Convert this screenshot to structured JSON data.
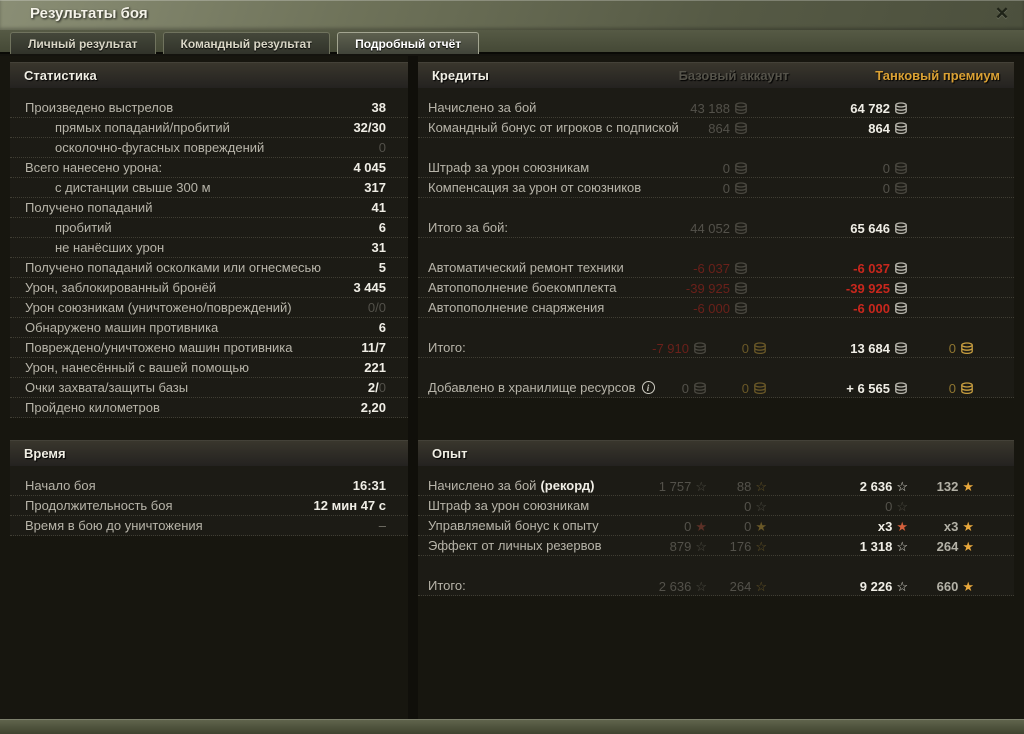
{
  "window": {
    "title": "Результаты боя",
    "close_label": "✕"
  },
  "tabs": [
    {
      "label": "Личный результат",
      "active": false
    },
    {
      "label": "Командный результат",
      "active": false
    },
    {
      "label": "Подробный отчёт",
      "active": true
    }
  ],
  "colors": {
    "premium_gold": "#daa134",
    "negative_red": "#c9271d",
    "value_white": "#f0eee6",
    "dimmed": "#53514a",
    "titlebar_olive": "#6e7259"
  },
  "stats": {
    "title": "Статистика",
    "rows": [
      {
        "label": "Произведено выстрелов",
        "value": "38"
      },
      {
        "label": "прямых попаданий/пробитий",
        "value": "32/30",
        "indent": 1
      },
      {
        "label": "осколочно-фугасных повреждений",
        "value": "0",
        "indent": 1,
        "dim": true
      },
      {
        "label": "Всего нанесено урона:",
        "value": "4 045"
      },
      {
        "label": "с дистанции свыше 300 м",
        "value": "317",
        "indent": 1
      },
      {
        "label": "Получено попаданий",
        "value": "41"
      },
      {
        "label": "пробитий",
        "value": "6",
        "indent": 1
      },
      {
        "label": "не нанёсших урон",
        "value": "31",
        "indent": 1
      },
      {
        "label": "Получено попаданий осколками или огнесмесью",
        "value": "5"
      },
      {
        "label": "Урон, заблокированный бронёй",
        "value": "3 445"
      },
      {
        "label": "Урон союзникам (уничтожено/повреждений)",
        "value": "0/0",
        "dim": true
      },
      {
        "label": "Обнаружено машин противника",
        "value": "6"
      },
      {
        "label": "Повреждено/уничтожено машин противника",
        "value": "11/7"
      },
      {
        "label": "Урон, нанесённый с вашей помощью",
        "value": "221"
      },
      {
        "label": "Очки захвата/защиты базы",
        "value": "2/",
        "value_dim": "0"
      },
      {
        "label": "Пройдено километров",
        "value": "2,20"
      }
    ]
  },
  "time": {
    "title": "Время",
    "rows": [
      {
        "label": "Начало боя",
        "value": "16:31"
      },
      {
        "label": "Продолжительность боя",
        "value": "12 мин 47 с"
      },
      {
        "label": "Время в бою до уничтожения",
        "value": "–",
        "dash": true
      }
    ]
  },
  "credits": {
    "title": "Кредиты",
    "base_header": "Базовый аккаунт",
    "premium_header": "Танковый премиум",
    "rows": [
      {
        "label": "Начислено за бой",
        "cells": [
          {
            "col": "b",
            "text": "43 188",
            "cls": "n-dim",
            "icon": "coin",
            "icls": "coin-dim"
          },
          {
            "col": "p",
            "text": "64 782",
            "cls": "n-bright",
            "icon": "coin",
            "icls": "coin-silver"
          }
        ]
      },
      {
        "label": "Командный бонус от игроков с подпиской",
        "cells": [
          {
            "col": "b",
            "text": "864",
            "cls": "n-dim",
            "icon": "coin",
            "icls": "coin-dim"
          },
          {
            "col": "p",
            "text": "864",
            "cls": "n-bright",
            "icon": "coin",
            "icls": "coin-silver"
          }
        ]
      },
      {
        "spacer": true
      },
      {
        "label": "Штраф за урон союзникам",
        "cells": [
          {
            "col": "b",
            "text": "0",
            "cls": "n-dim",
            "icon": "coin",
            "icls": "coin-dim"
          },
          {
            "col": "p",
            "text": "0",
            "cls": "n-dim",
            "icon": "coin",
            "icls": "coin-dim"
          }
        ]
      },
      {
        "label": "Компенсация за урон от союзников",
        "cells": [
          {
            "col": "b",
            "text": "0",
            "cls": "n-dim",
            "icon": "coin",
            "icls": "coin-dim"
          },
          {
            "col": "p",
            "text": "0",
            "cls": "n-dim",
            "icon": "coin",
            "icls": "coin-dim"
          }
        ]
      },
      {
        "spacer": true
      },
      {
        "label": "Итого за бой:",
        "cells": [
          {
            "col": "b",
            "text": "44 052",
            "cls": "n-dim",
            "icon": "coin",
            "icls": "coin-dim"
          },
          {
            "col": "p",
            "text": "65 646",
            "cls": "n-bright",
            "icon": "coin",
            "icls": "coin-silver"
          }
        ]
      },
      {
        "spacer": true
      },
      {
        "label": "Автоматический ремонт техники",
        "cells": [
          {
            "col": "b",
            "text": "-6 037",
            "cls": "n-negdim",
            "icon": "coin",
            "icls": "coin-dim"
          },
          {
            "col": "p",
            "text": "-6 037",
            "cls": "n-neg",
            "icon": "coin",
            "icls": "coin-silver"
          }
        ]
      },
      {
        "label": "Автопополнение боекомплекта",
        "cells": [
          {
            "col": "b",
            "text": "-39 925",
            "cls": "n-negdim",
            "icon": "coin",
            "icls": "coin-dim"
          },
          {
            "col": "p",
            "text": "-39 925",
            "cls": "n-neg",
            "icon": "coin",
            "icls": "coin-silver"
          }
        ]
      },
      {
        "label": "Автопополнение снаряжения",
        "cells": [
          {
            "col": "b",
            "text": "-6 000",
            "cls": "n-negdim",
            "icon": "coin",
            "icls": "coin-dim"
          },
          {
            "col": "p",
            "text": "-6 000",
            "cls": "n-neg",
            "icon": "coin",
            "icls": "coin-silver"
          }
        ]
      },
      {
        "spacer": true
      },
      {
        "label": "Итого:",
        "cells": [
          {
            "col": "c1",
            "text": "-7 910",
            "cls": "n-negdim",
            "icon": "coin",
            "icls": "coin-dim"
          },
          {
            "col": "c2",
            "text": "0",
            "cls": "n-golddim",
            "icon": "coin",
            "icls": "coin-golddim"
          },
          {
            "col": "c3",
            "text": "13 684",
            "cls": "n-bright",
            "icon": "coin",
            "icls": "coin-silver"
          },
          {
            "col": "c4",
            "text": "0",
            "cls": "n-goldmid",
            "icon": "coin",
            "icls": "coin-gold"
          }
        ]
      },
      {
        "spacer": true
      },
      {
        "label": "Добавлено в хранилище ресурсов",
        "info_icon": true,
        "cells": [
          {
            "col": "c1",
            "text": "0",
            "cls": "n-dim",
            "icon": "coin",
            "icls": "coin-dim"
          },
          {
            "col": "c2",
            "text": "0",
            "cls": "n-golddim",
            "icon": "coin",
            "icls": "coin-golddim"
          },
          {
            "col": "c3",
            "text": "+ 6 565",
            "cls": "n-bright",
            "icon": "coin",
            "icls": "coin-silver"
          },
          {
            "col": "c4",
            "text": "0",
            "cls": "n-goldmid",
            "icon": "coin",
            "icls": "coin-gold"
          }
        ]
      }
    ]
  },
  "xp": {
    "title": "Опыт",
    "rows": [
      {
        "label": "Начислено за бой",
        "label_em": "(рекорд)",
        "cells": [
          {
            "col": "c1",
            "text": "1 757",
            "cls": "n-dim",
            "icon": "star",
            "icls": "s-dim"
          },
          {
            "col": "c2",
            "text": "88",
            "cls": "n-dim",
            "icon": "star",
            "icls": "s-golddim"
          },
          {
            "col": "c3",
            "text": "2 636",
            "cls": "n-bright",
            "icon": "star",
            "icls": "s-white"
          },
          {
            "col": "c4",
            "text": "132",
            "cls": "n-mid",
            "icon": "starf",
            "icls": "s-gold"
          }
        ]
      },
      {
        "label": "Штраф за урон союзникам",
        "cells": [
          {
            "col": "c2",
            "text": "0",
            "cls": "n-dim",
            "icon": "star",
            "icls": "s-dim"
          },
          {
            "col": "c3",
            "text": "0",
            "cls": "n-dim",
            "icon": "star",
            "icls": "s-dim"
          }
        ]
      },
      {
        "label": "Управляемый бонус к опыту",
        "cells": [
          {
            "col": "c1",
            "text": "0",
            "cls": "n-dim",
            "icon": "starf",
            "icls": "s-reddim"
          },
          {
            "col": "c2",
            "text": "0",
            "cls": "n-dim",
            "icon": "starf",
            "icls": "s-golddim"
          },
          {
            "col": "c3",
            "text": "x3",
            "cls": "n-bright",
            "icon": "starf",
            "icls": "s-red"
          },
          {
            "col": "c4",
            "text": "x3",
            "cls": "n-mid",
            "icon": "starf",
            "icls": "s-gold"
          }
        ]
      },
      {
        "label": "Эффект от личных резервов",
        "cells": [
          {
            "col": "c1",
            "text": "879",
            "cls": "n-dim",
            "icon": "star",
            "icls": "s-dim"
          },
          {
            "col": "c2",
            "text": "176",
            "cls": "n-dim",
            "icon": "star",
            "icls": "s-golddim"
          },
          {
            "col": "c3",
            "text": "1 318",
            "cls": "n-bright",
            "icon": "star",
            "icls": "s-white"
          },
          {
            "col": "c4",
            "text": "264",
            "cls": "n-mid",
            "icon": "starf",
            "icls": "s-gold"
          }
        ]
      },
      {
        "spacer": true
      },
      {
        "label": "Итого:",
        "cells": [
          {
            "col": "c1",
            "text": "2 636",
            "cls": "n-dim",
            "icon": "star",
            "icls": "s-dim"
          },
          {
            "col": "c2",
            "text": "264",
            "cls": "n-dim",
            "icon": "star",
            "icls": "s-golddim"
          },
          {
            "col": "c3",
            "text": "9 226",
            "cls": "n-bright",
            "icon": "star",
            "icls": "s-white"
          },
          {
            "col": "c4",
            "text": "660",
            "cls": "n-mid",
            "icon": "starf",
            "icls": "s-gold"
          }
        ]
      }
    ]
  }
}
